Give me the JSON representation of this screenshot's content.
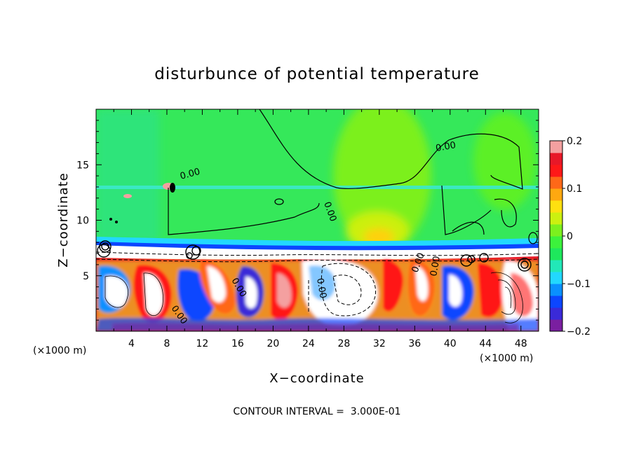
{
  "chart_data": {
    "type": "heatmap",
    "title": "disturbunce of potential temperature",
    "xlabel": "X−coordinate",
    "ylabel": "Z−coordinate",
    "x_unit_left": "(×1000 m)",
    "x_unit_right": "(×1000 m)",
    "x_ticks": [
      "4",
      "8",
      "12",
      "16",
      "20",
      "24",
      "28",
      "32",
      "36",
      "40",
      "44",
      "48"
    ],
    "y_ticks": [
      "5",
      "10",
      "15"
    ],
    "xlim": [
      0,
      50
    ],
    "ylim": [
      0,
      20
    ],
    "colorbar": {
      "range": [
        -0.2,
        0.2
      ],
      "tick_labels": [
        "0.2",
        "0.1",
        "0",
        "−0.1",
        "−0.2"
      ],
      "colors": [
        "#7a1fa0",
        "#3a2ad8",
        "#0c46ff",
        "#0a90ff",
        "#22d8ff",
        "#22e8b8",
        "#1ee85c",
        "#3cf23c",
        "#7cf01e",
        "#ccf010",
        "#ffe010",
        "#ffa810",
        "#ff6818",
        "#ff1818",
        "#e81828",
        "#f4a0a0"
      ]
    },
    "contour_labels": [
      "0.00",
      "0.00",
      "0.00",
      "0.00",
      "0.00",
      "0.00",
      "0.00",
      "0.00"
    ],
    "footer": "CONTOUR INTERVAL =  3.000E-01"
  }
}
